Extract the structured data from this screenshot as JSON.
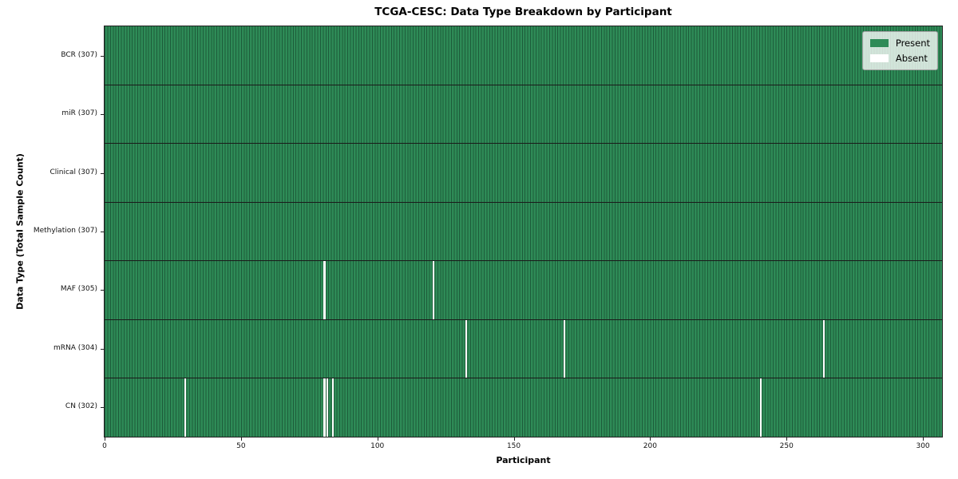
{
  "figure": {
    "title": "TCGA-CESC: Data Type Breakdown by Participant",
    "xlabel": "Participant",
    "ylabel": "Data Type (Total Sample Count)"
  },
  "chart_data": {
    "type": "heatmap",
    "title": "TCGA-CESC: Data Type Breakdown by Participant",
    "xlabel": "Participant",
    "ylabel": "Data Type (Total Sample Count)",
    "x_ticks": [
      0,
      50,
      100,
      150,
      200,
      250,
      300
    ],
    "xlim": [
      0,
      307
    ],
    "n_participants": 307,
    "grid": false,
    "legend_position": "upper right",
    "rows": [
      {
        "label": "BCR (307)",
        "data_type": "BCR",
        "total": 307,
        "absent_participants": []
      },
      {
        "label": "miR (307)",
        "data_type": "miR",
        "total": 307,
        "absent_participants": []
      },
      {
        "label": "Clinical (307)",
        "data_type": "Clinical",
        "total": 307,
        "absent_participants": []
      },
      {
        "label": "Methylation (307)",
        "data_type": "Methylation",
        "total": 307,
        "absent_participants": []
      },
      {
        "label": "MAF (305)",
        "data_type": "MAF",
        "total": 305,
        "absent_participants": [
          80,
          120
        ]
      },
      {
        "label": "mRNA (304)",
        "data_type": "mRNA",
        "total": 304,
        "absent_participants": [
          132,
          168,
          263
        ]
      },
      {
        "label": "CN (302)",
        "data_type": "CN",
        "total": 302,
        "absent_participants": [
          29,
          80,
          81,
          83,
          240
        ]
      }
    ],
    "legend": [
      {
        "label": "Present",
        "color": "#2e8b57"
      },
      {
        "label": "Absent",
        "color": "#ffffff"
      }
    ],
    "colors": {
      "present": "#2e8b57",
      "absent": "#ffffff",
      "cell_edge": "#1d5c3a",
      "row_divider": "#1a1a1a",
      "spine": "#222222"
    }
  }
}
